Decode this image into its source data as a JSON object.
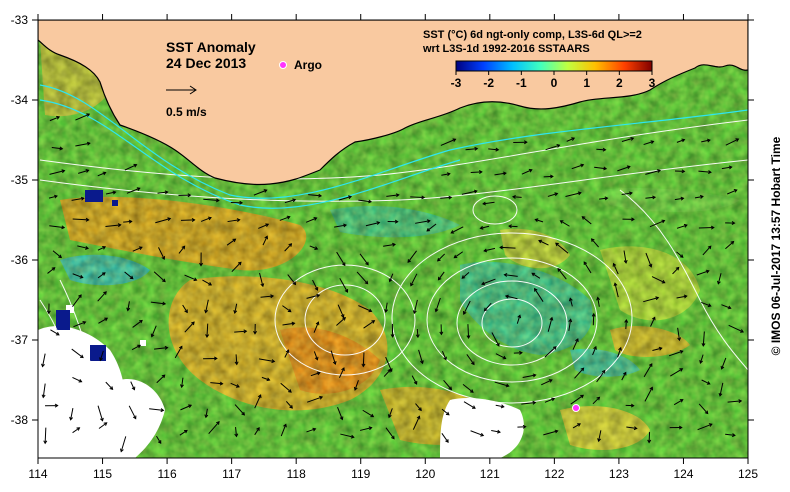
{
  "map": {
    "title": "SST Anomaly",
    "date": "24 Dec 2013",
    "legend_argo": "Argo",
    "velocity_scale": "0.5 m/s",
    "product_line1": "SST (°C) 6d ngt-only comp, L3S-6d QL>=2",
    "product_line2": "wrt L3S-1d 1992-2016 SSTAARS",
    "colorbar": {
      "ticks": [
        "-3",
        "-2",
        "-1",
        "0",
        "1",
        "2",
        "3"
      ],
      "colors": [
        "#00007f",
        "#0040ff",
        "#00c0ff",
        "#40ffbf",
        "#c0ff40",
        "#ffc000",
        "#ff4000",
        "#7f0000"
      ]
    },
    "x_axis": {
      "ticks": [
        "114",
        "115",
        "116",
        "117",
        "118",
        "119",
        "120",
        "121",
        "122",
        "123",
        "124",
        "125"
      ]
    },
    "y_axis": {
      "ticks": [
        "-33",
        "-34",
        "-35",
        "-36",
        "-37",
        "-38"
      ]
    },
    "credit": "©  IMOS 06-Jul-2017 13:57 Hobart Time",
    "colors": {
      "land": "#f9c9a0",
      "coast": "#000000",
      "current_lines": "#2ee6f0",
      "contours": "#ffffff",
      "argo": "#ff33ff"
    }
  }
}
